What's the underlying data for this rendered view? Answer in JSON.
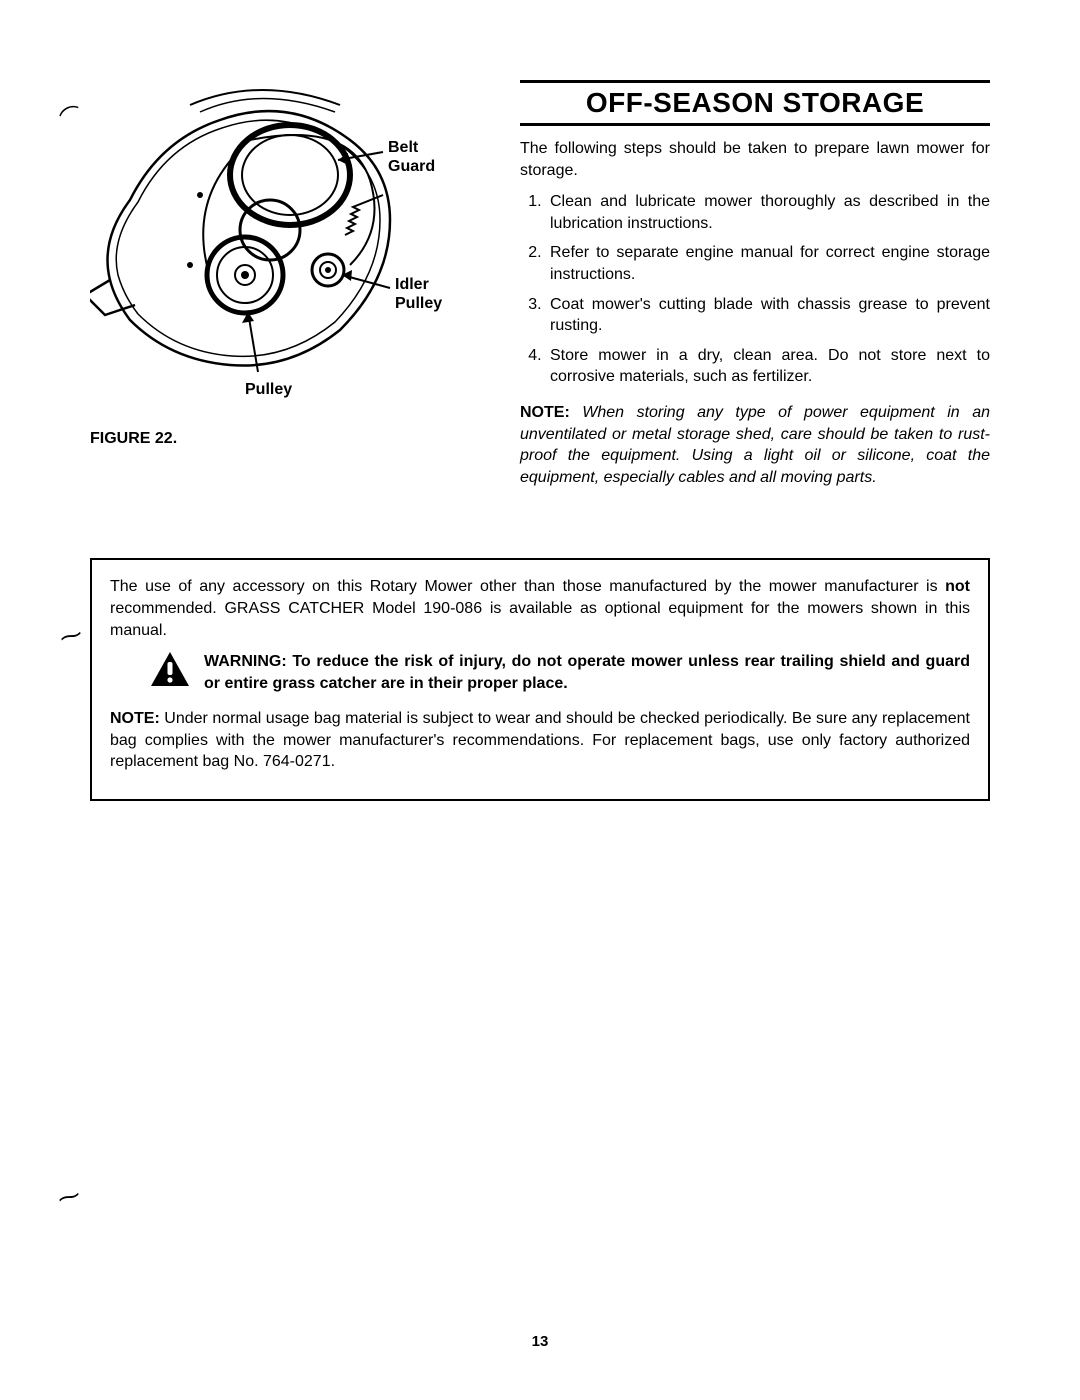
{
  "figure": {
    "label_belt": "Belt\nGuard",
    "label_idler": "Idler\nPulley",
    "label_pulley": "Pulley",
    "caption": "FIGURE 22."
  },
  "section": {
    "heading": "OFF-SEASON STORAGE",
    "intro": "The following steps should be taken to prepare lawn mower for storage.",
    "steps": [
      "Clean and lubricate mower thoroughly as described in the lubrication instructions.",
      "Refer to separate engine manual for correct engine storage instructions.",
      "Coat mower's cutting blade with chassis grease to prevent rusting.",
      "Store mower in a dry, clean area. Do not store next to corrosive materials, such as fertilizer."
    ],
    "note_label": "NOTE:",
    "note_body": "When storing any type of power equipment in an unventilated or metal storage shed, care should be taken to rust-proof the equipment. Using a light oil or silicone, coat the equipment, especially cables and all moving parts."
  },
  "box": {
    "p1_a": "The use of any accessory on this Rotary Mower other than those manufactured by the mower manufacturer is ",
    "p1_b": "not",
    "p1_c": " recommended. GRASS CATCHER Model 190-086 is available as optional equipment for the mowers shown in this manual.",
    "warning": "WARNING: To reduce the risk of injury, do not operate mower unless rear trailing shield and guard or entire grass catcher are in their proper place.",
    "p2_label": "NOTE:",
    "p2_body": " Under normal usage bag material is subject to wear and should be checked periodically. Be sure any replacement bag complies with the mower manufacturer's recommendations. For replacement bags, use only factory authorized replacement bag No. 764-0271."
  },
  "page_number": "13",
  "colors": {
    "text": "#000000",
    "bg": "#ffffff"
  }
}
